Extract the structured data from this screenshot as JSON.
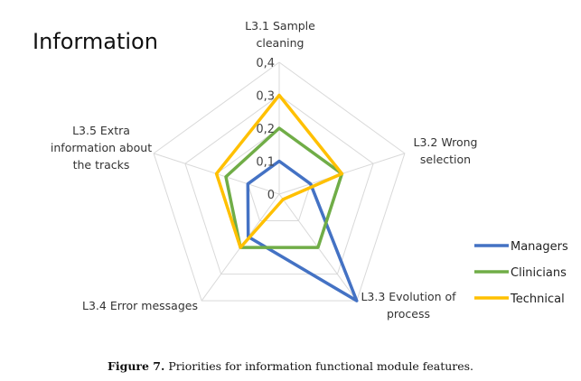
{
  "chart_data": {
    "type": "radar",
    "title": "Information",
    "axes": [
      [
        "L3.1 Sample",
        "cleaning"
      ],
      [
        "L3.2 Wrong",
        "selection"
      ],
      [
        "L3.3 Evolution of",
        "process"
      ],
      [
        "L3.4 Error messages"
      ],
      [
        "L3.5 Extra",
        "information about",
        "the tracks"
      ]
    ],
    "ticks": [
      "0",
      "0,1",
      "0,2",
      "0,3",
      "0,4"
    ],
    "range": [
      0,
      0.4
    ],
    "grid": true,
    "legend_position": "right",
    "series": [
      {
        "name": "Managers",
        "color": "#4472C4",
        "values": [
          0.1,
          0.1,
          0.4,
          0.16,
          0.1
        ]
      },
      {
        "name": "Clinicians",
        "color": "#70AD47",
        "values": [
          0.2,
          0.2,
          0.2,
          0.2,
          0.17
        ]
      },
      {
        "name": "Technical",
        "color": "#FFC000",
        "values": [
          0.3,
          0.2,
          0.02,
          0.2,
          0.2
        ]
      }
    ]
  },
  "caption": {
    "label": "Figure 7.",
    "text": " Priorities for information functional module features."
  }
}
